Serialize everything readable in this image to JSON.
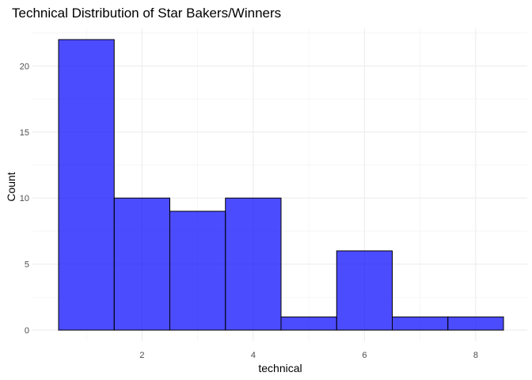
{
  "chart_data": {
    "type": "bar",
    "title": "Technical Distribution of Star Bakers/Winners",
    "xlabel": "technical",
    "ylabel": "Count",
    "bin_width": 1,
    "x": [
      1,
      2,
      3,
      4,
      5,
      6,
      7,
      8
    ],
    "values": [
      22,
      10,
      9,
      10,
      1,
      6,
      1,
      1
    ],
    "xlim": [
      0.5,
      8.5
    ],
    "ylim": [
      0,
      22
    ],
    "x_ticks": [
      2,
      4,
      6,
      8
    ],
    "y_ticks": [
      0,
      5,
      10,
      15,
      20
    ],
    "bar_color": "#0000ff",
    "bar_opacity": 0.7,
    "grid": true,
    "legend": "none"
  }
}
